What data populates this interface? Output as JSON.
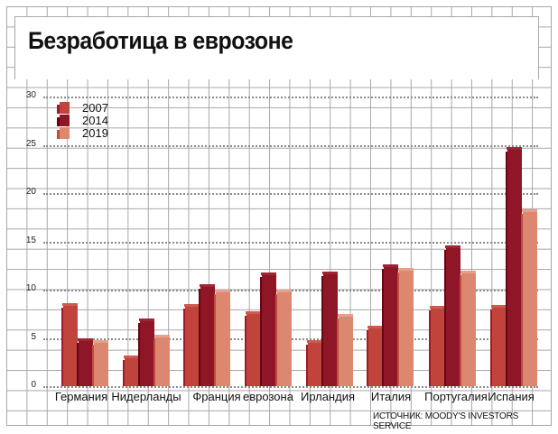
{
  "title": "Безработица в еврозоне",
  "source": "ИСТОЧНИК: MOODY'S INVESTORS SERVICE",
  "colors": {
    "2007": {
      "front": "#c0443c",
      "side": "#a01a2a",
      "top": "#d05a50"
    },
    "2014": {
      "front": "#8e1626",
      "side": "#650814",
      "top": "#a02434"
    },
    "2019": {
      "front": "#dc8870",
      "side": "#c04c42",
      "top": "#e8a08a"
    }
  },
  "legend": [
    {
      "label": "2007"
    },
    {
      "label": "2014"
    },
    {
      "label": "2019"
    }
  ],
  "y_ticks": [
    "0",
    "5",
    "10",
    "15",
    "20",
    "25",
    "30"
  ],
  "chart_data": {
    "type": "bar",
    "title": "Безработица в еврозоне",
    "xlabel": "",
    "ylabel": "",
    "ylim": [
      0,
      30
    ],
    "grid": true,
    "legend_position": "top-left",
    "categories": [
      "Германия",
      "Нидерланды",
      "Франция",
      "еврозона",
      "Ирландия",
      "Италия",
      "Португалия",
      "Испания"
    ],
    "series": [
      {
        "name": "2007",
        "values": [
          8.6,
          3.2,
          8.5,
          7.8,
          4.8,
          6.3,
          8.3,
          8.4
        ]
      },
      {
        "name": "2014",
        "values": [
          5.0,
          7.0,
          10.6,
          11.8,
          11.9,
          12.6,
          14.6,
          24.8
        ]
      },
      {
        "name": "2019",
        "values": [
          4.8,
          5.3,
          10.0,
          10.0,
          7.5,
          12.2,
          12.0,
          18.3
        ]
      }
    ],
    "annotations": [
      "ИСТОЧНИК: MOODY'S INVESTORS SERVICE"
    ]
  }
}
